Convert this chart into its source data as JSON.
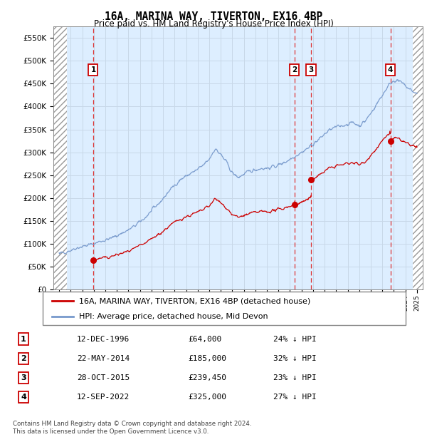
{
  "title": "16A, MARINA WAY, TIVERTON, EX16 4BP",
  "subtitle": "Price paid vs. HM Land Registry's House Price Index (HPI)",
  "ylabel_ticks": [
    "£0",
    "£50K",
    "£100K",
    "£150K",
    "£200K",
    "£250K",
    "£300K",
    "£350K",
    "£400K",
    "£450K",
    "£500K",
    "£550K"
  ],
  "ytick_values": [
    0,
    50000,
    100000,
    150000,
    200000,
    250000,
    300000,
    350000,
    400000,
    450000,
    500000,
    550000
  ],
  "ylim": [
    0,
    575000
  ],
  "xlim_start": 1993.5,
  "xlim_end": 2025.5,
  "hpi_control_x": [
    1994,
    1994.5,
    1995,
    1995.5,
    1996,
    1996.5,
    1997,
    1997.5,
    1998,
    1998.5,
    1999,
    1999.5,
    2000,
    2000.5,
    2001,
    2001.5,
    2002,
    2002.5,
    2003,
    2003.5,
    2004,
    2004.5,
    2005,
    2005.5,
    2006,
    2006.5,
    2007,
    2007.5,
    2008,
    2008.5,
    2009,
    2009.5,
    2010,
    2010.5,
    2011,
    2011.5,
    2012,
    2012.5,
    2013,
    2013.5,
    2014,
    2014.5,
    2015,
    2015.5,
    2016,
    2016.5,
    2017,
    2017.5,
    2018,
    2018.5,
    2019,
    2019.5,
    2020,
    2020.5,
    2021,
    2021.5,
    2022,
    2022.5,
    2023,
    2023.5,
    2024,
    2024.5,
    2025
  ],
  "hpi_control_y": [
    78000,
    82000,
    86000,
    91000,
    94000,
    97000,
    100000,
    105000,
    108000,
    112000,
    118000,
    124000,
    130000,
    138000,
    148000,
    158000,
    172000,
    185000,
    198000,
    215000,
    228000,
    240000,
    248000,
    255000,
    262000,
    272000,
    285000,
    308000,
    295000,
    278000,
    255000,
    245000,
    252000,
    258000,
    262000,
    265000,
    265000,
    268000,
    272000,
    278000,
    285000,
    293000,
    300000,
    308000,
    318000,
    328000,
    340000,
    350000,
    355000,
    358000,
    362000,
    365000,
    358000,
    368000,
    385000,
    405000,
    425000,
    445000,
    458000,
    455000,
    445000,
    435000,
    428000
  ],
  "transactions": [
    {
      "num": 1,
      "date": "12-DEC-1996",
      "year": 1996.95,
      "price": 64000,
      "pct": "24% ↓ HPI"
    },
    {
      "num": 2,
      "date": "22-MAY-2014",
      "year": 2014.38,
      "price": 185000,
      "pct": "32% ↓ HPI"
    },
    {
      "num": 3,
      "date": "28-OCT-2015",
      "year": 2015.82,
      "price": 239450,
      "pct": "23% ↓ HPI"
    },
    {
      "num": 4,
      "date": "12-SEP-2022",
      "year": 2022.7,
      "price": 325000,
      "pct": "27% ↓ HPI"
    }
  ],
  "legend_property": "16A, MARINA WAY, TIVERTON, EX16 4BP (detached house)",
  "legend_hpi": "HPI: Average price, detached house, Mid Devon",
  "footer1": "Contains HM Land Registry data © Crown copyright and database right 2024.",
  "footer2": "This data is licensed under the Open Government Licence v3.0.",
  "line_color_red": "#cc0000",
  "line_color_blue": "#7799cc",
  "grid_color": "#c8d8e8",
  "bg_color": "#ddeeff",
  "transaction_box_color": "#cc0000",
  "dashed_line_color": "#dd3333",
  "noise_seed": 42,
  "hpi_noise_scale": 4000,
  "red_noise_scale": 3500
}
